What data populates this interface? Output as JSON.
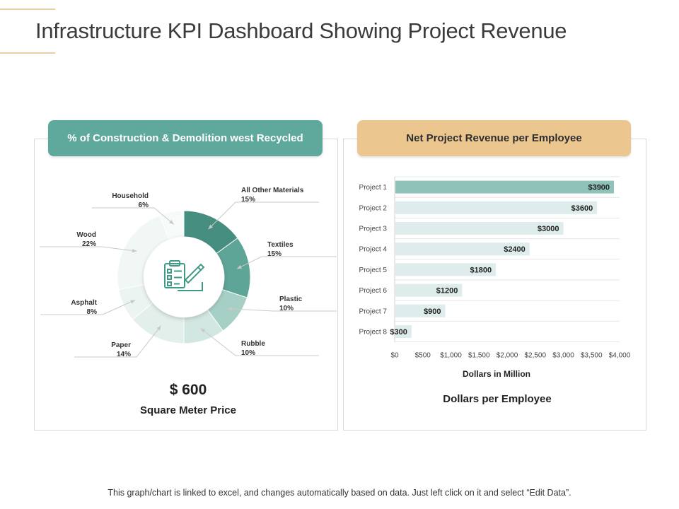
{
  "page": {
    "title": "Infrastructure KPI Dashboard Showing Project Revenue",
    "footer": "This graph/chart is linked to excel, and changes automatically based on data. Just left click on it and select “Edit Data”."
  },
  "left_panel": {
    "header": "% of Construction  & Demolition west Recycled",
    "center_icon": "clipboard-checklist-icon",
    "value": "$ 600",
    "value_label": "Square Meter Price"
  },
  "right_panel": {
    "header": "Net Project Revenue per Employee",
    "axis_title": "Dollars in Million",
    "sub_label": "Dollars per Employee"
  },
  "colors": {
    "accent_green": "#5fa89c",
    "accent_tan": "#ecc68f",
    "bar_first": "#8fc2b8",
    "bar_rest": "#deeceb"
  },
  "chart_data": [
    {
      "type": "pie",
      "variant": "donut",
      "title": "% of Construction  & Demolition west Recycled",
      "slices": [
        {
          "label": "All Other Materials",
          "value": 15,
          "display": "15%",
          "color": "#468f80"
        },
        {
          "label": "Textiles",
          "value": 15,
          "display": "15%",
          "color": "#5ea597"
        },
        {
          "label": "Plastic",
          "value": 10,
          "display": "10%",
          "color": "#a6d0c6"
        },
        {
          "label": "Rubble",
          "value": 10,
          "display": "10%",
          "color": "#d2e7e1"
        },
        {
          "label": "Paper",
          "value": 14,
          "display": "14%",
          "color": "#e2efeb"
        },
        {
          "label": "Asphalt",
          "value": 8,
          "display": "8%",
          "color": "#ebf4f1"
        },
        {
          "label": "Wood",
          "value": 22,
          "display": "22%",
          "color": "#f1f7f5"
        },
        {
          "label": "Household",
          "value": 6,
          "display": "6%",
          "color": "#f6faf8"
        }
      ]
    },
    {
      "type": "bar",
      "orientation": "horizontal",
      "title": "Net Project Revenue per Employee",
      "categories": [
        "Project 1",
        "Project 2",
        "Project 3",
        "Project 4",
        "Project 5",
        "Project 6",
        "Project 7",
        "Project 8"
      ],
      "values": [
        3900,
        3600,
        3000,
        2400,
        1800,
        1200,
        900,
        300
      ],
      "data_labels": [
        "$3900",
        "$3600",
        "$3000",
        "$2400",
        "$1800",
        "$1200",
        "$900",
        "$300"
      ],
      "xlim": [
        0,
        4000
      ],
      "xticks": [
        0,
        500,
        1000,
        1500,
        2000,
        2500,
        3000,
        3500,
        4000
      ],
      "xtick_labels": [
        "$0",
        "$500",
        "$1,000",
        "$1,500",
        "$2,000",
        "$2,500",
        "$3,000",
        "$3,500",
        "$4,000"
      ],
      "xlabel": "Dollars in Million",
      "grid": true
    }
  ]
}
